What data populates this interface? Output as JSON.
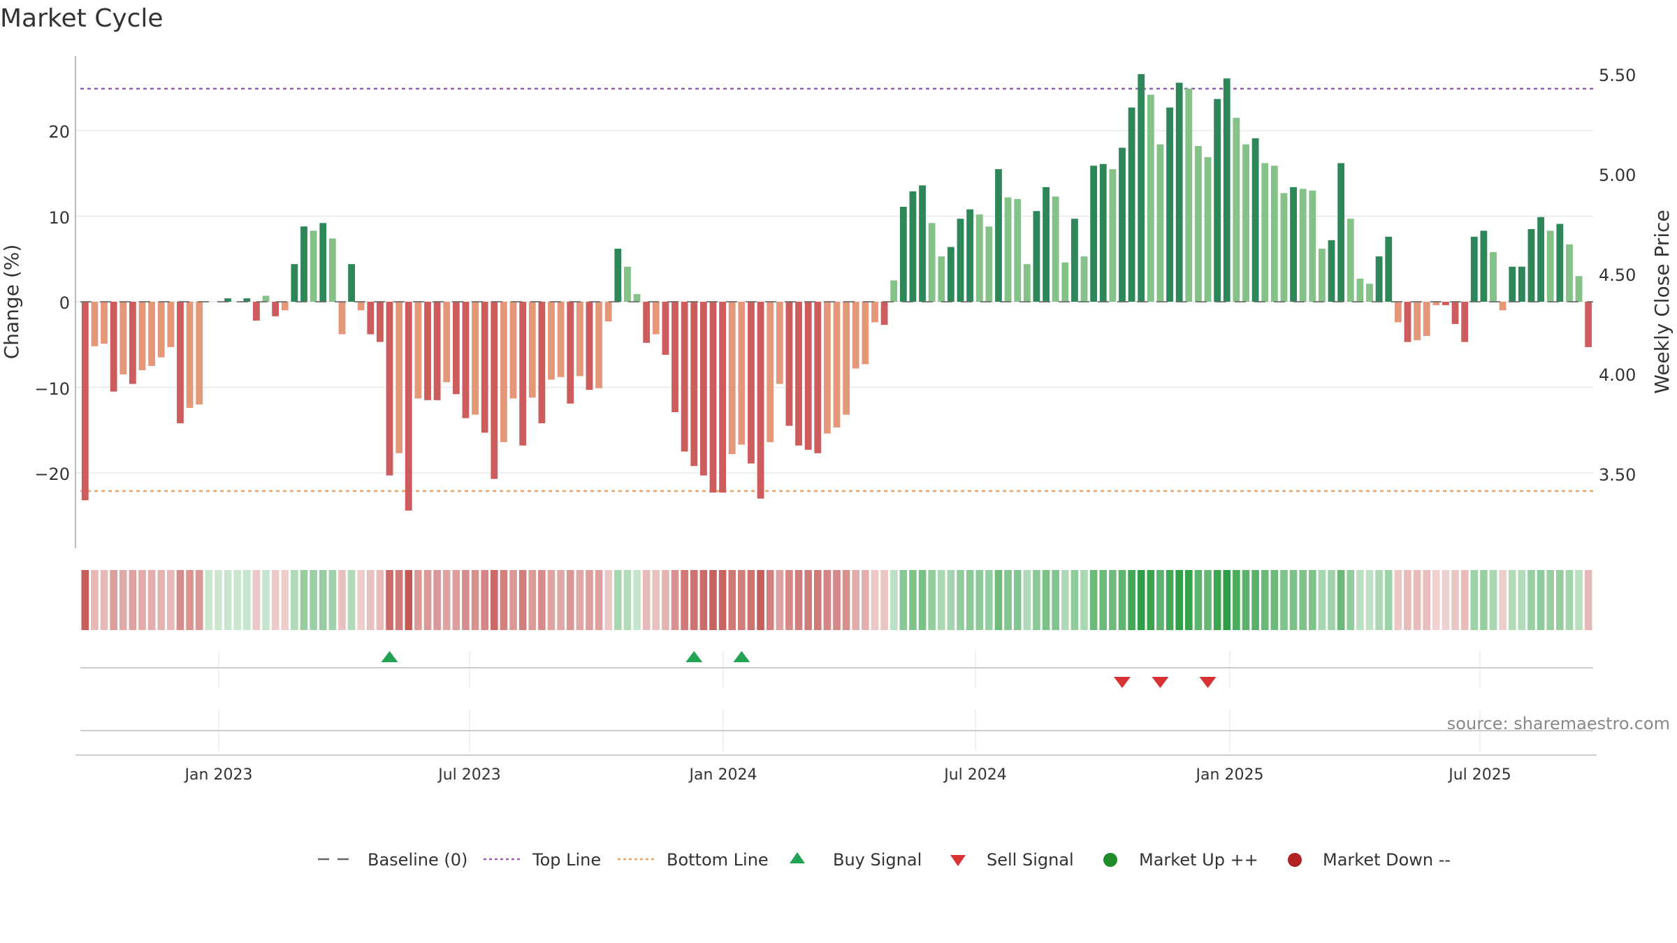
{
  "chart_data": {
    "type": "bar",
    "title": "Market Cycle",
    "ylabel_left": "Change (%)",
    "ylabel_right": "Weekly Close Price",
    "left_ticks": [
      20,
      10,
      0,
      -10,
      -20
    ],
    "left_tick_labels": [
      "20",
      "10",
      "0",
      "−10",
      "−20"
    ],
    "right_ticks": [
      5.5,
      5.0,
      4.5,
      4.0,
      3.5
    ],
    "right_tick_labels": [
      "5.50",
      "5.00",
      "4.50",
      "4.00",
      "3.50"
    ],
    "x_tick_labels": [
      "Jan 2023",
      "Jul 2023",
      "Jan 2024",
      "Jul 2024",
      "Jan 2025",
      "Jul 2025"
    ],
    "top_line": 25,
    "bottom_line": -22,
    "values": [
      -23.2,
      -5.2,
      -4.9,
      -10.5,
      -8.5,
      -9.6,
      -8.0,
      -7.5,
      -6.5,
      -5.3,
      -14.2,
      -12.4,
      -12.0,
      0,
      0,
      0.4,
      0,
      0.4,
      -2.2,
      0.7,
      -1.7,
      -1.0,
      4.4,
      8.8,
      8.3,
      9.2,
      7.4,
      -3.8,
      4.4,
      -1.0,
      -3.8,
      -4.7,
      -20.3,
      -17.7,
      -24.4,
      -11.3,
      -11.5,
      -11.5,
      -9.4,
      -10.8,
      -13.6,
      -13.2,
      -15.3,
      -20.7,
      -16.4,
      -11.3,
      -16.8,
      -11.2,
      -14.2,
      -9.1,
      -8.8,
      -11.9,
      -8.7,
      -10.3,
      -10.1,
      -2.3,
      6.2,
      4.1,
      0.9,
      -4.8,
      -3.8,
      -6.2,
      -12.9,
      -17.5,
      -19.2,
      -20.3,
      -22.3,
      -22.3,
      -17.8,
      -16.7,
      -18.9,
      -23.0,
      -16.4,
      -9.6,
      -14.5,
      -16.8,
      -17.3,
      -17.7,
      -15.4,
      -14.7,
      -13.2,
      -7.8,
      -7.3,
      -2.4,
      -2.7,
      2.5,
      11.1,
      12.9,
      13.6,
      9.2,
      5.3,
      6.4,
      9.7,
      10.8,
      10.2,
      8.8,
      15.5,
      12.2,
      12.0,
      4.4,
      10.6,
      13.4,
      12.3,
      4.6,
      9.7,
      5.3,
      15.9,
      16.1,
      15.5,
      18.0,
      22.7,
      26.6,
      24.2,
      18.4,
      22.7,
      25.6,
      24.9,
      18.2,
      16.9,
      23.7,
      26.1,
      21.5,
      18.4,
      19.1,
      16.2,
      15.9,
      12.7,
      13.4,
      13.2,
      13.0,
      6.2,
      7.2,
      16.2,
      9.7,
      2.7,
      2.1,
      5.3,
      7.6,
      -2.4,
      -4.7,
      -4.5,
      -4.0,
      -0.4,
      -0.4,
      -2.6,
      -4.7,
      7.6,
      8.3,
      5.8,
      -1.0,
      4.1,
      4.1,
      8.5,
      9.9,
      8.3,
      9.1,
      6.7,
      3.0,
      -5.3
    ],
    "signals": {
      "buy_indices": [
        32,
        64,
        69
      ],
      "sell_indices": [
        109,
        113,
        118
      ]
    },
    "legend": [
      {
        "label": "Baseline (0)",
        "symbol": "dash"
      },
      {
        "label": "Top Line",
        "symbol": "dot-line"
      },
      {
        "label": "Bottom Line",
        "symbol": "dot-line"
      },
      {
        "label": "Buy Signal",
        "symbol": "triangle-up"
      },
      {
        "label": "Sell Signal",
        "symbol": "triangle-down"
      },
      {
        "label": "Market Up ++",
        "symbol": "circle"
      },
      {
        "label": "Market Down --",
        "symbol": "circle"
      }
    ],
    "source": "source: sharemaestro.com",
    "colors": {
      "dark_green": "#2e8759",
      "light_green": "#85c288",
      "dark_red": "#cd5c5c",
      "light_red": "#e5977a",
      "top_line": "#9b59b6",
      "bottom_line": "#f0a05a",
      "buy_marker": "#22a352",
      "sell_marker": "#d93232",
      "market_up": "#1e8c28",
      "market_down": "#b22222",
      "baseline": "#666666"
    }
  }
}
